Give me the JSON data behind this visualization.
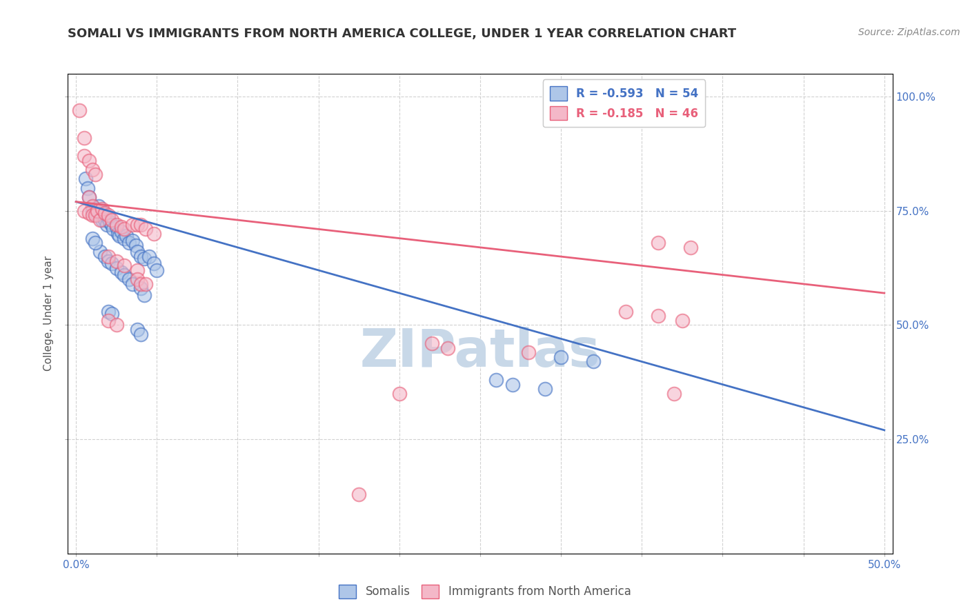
{
  "title": "SOMALI VS IMMIGRANTS FROM NORTH AMERICA COLLEGE, UNDER 1 YEAR CORRELATION CHART",
  "source": "Source: ZipAtlas.com",
  "ylabel": "College, Under 1 year",
  "legend_blue_r": "R = -0.593",
  "legend_blue_n": "N = 54",
  "legend_pink_r": "R = -0.185",
  "legend_pink_n": "N = 46",
  "legend_label_blue": "Somalis",
  "legend_label_pink": "Immigrants from North America",
  "blue_color": "#aec6e8",
  "pink_color": "#f4b8c8",
  "blue_line_color": "#4472c4",
  "pink_line_color": "#e8607a",
  "blue_scatter": [
    [
      0.01,
      0.76
    ],
    [
      0.01,
      0.75
    ],
    [
      0.012,
      0.755
    ],
    [
      0.013,
      0.74
    ],
    [
      0.014,
      0.76
    ],
    [
      0.015,
      0.745
    ],
    [
      0.016,
      0.73
    ],
    [
      0.017,
      0.745
    ],
    [
      0.018,
      0.73
    ],
    [
      0.019,
      0.72
    ],
    [
      0.02,
      0.735
    ],
    [
      0.021,
      0.725
    ],
    [
      0.022,
      0.72
    ],
    [
      0.023,
      0.71
    ],
    [
      0.025,
      0.715
    ],
    [
      0.026,
      0.7
    ],
    [
      0.027,
      0.695
    ],
    [
      0.028,
      0.705
    ],
    [
      0.03,
      0.69
    ],
    [
      0.031,
      0.695
    ],
    [
      0.033,
      0.68
    ],
    [
      0.035,
      0.685
    ],
    [
      0.037,
      0.675
    ],
    [
      0.038,
      0.66
    ],
    [
      0.04,
      0.65
    ],
    [
      0.042,
      0.645
    ],
    [
      0.045,
      0.65
    ],
    [
      0.048,
      0.635
    ],
    [
      0.05,
      0.62
    ],
    [
      0.015,
      0.66
    ],
    [
      0.018,
      0.65
    ],
    [
      0.02,
      0.64
    ],
    [
      0.022,
      0.635
    ],
    [
      0.025,
      0.625
    ],
    [
      0.028,
      0.615
    ],
    [
      0.03,
      0.61
    ],
    [
      0.033,
      0.6
    ],
    [
      0.035,
      0.59
    ],
    [
      0.04,
      0.58
    ],
    [
      0.042,
      0.565
    ],
    [
      0.006,
      0.82
    ],
    [
      0.007,
      0.8
    ],
    [
      0.008,
      0.78
    ],
    [
      0.01,
      0.69
    ],
    [
      0.012,
      0.68
    ],
    [
      0.02,
      0.53
    ],
    [
      0.022,
      0.525
    ],
    [
      0.038,
      0.49
    ],
    [
      0.04,
      0.48
    ],
    [
      0.3,
      0.43
    ],
    [
      0.32,
      0.42
    ],
    [
      0.26,
      0.38
    ],
    [
      0.27,
      0.37
    ],
    [
      0.29,
      0.36
    ]
  ],
  "pink_scatter": [
    [
      0.002,
      0.97
    ],
    [
      0.005,
      0.91
    ],
    [
      0.005,
      0.87
    ],
    [
      0.008,
      0.86
    ],
    [
      0.01,
      0.84
    ],
    [
      0.012,
      0.83
    ],
    [
      0.008,
      0.78
    ],
    [
      0.01,
      0.76
    ],
    [
      0.005,
      0.75
    ],
    [
      0.008,
      0.745
    ],
    [
      0.01,
      0.74
    ],
    [
      0.012,
      0.74
    ],
    [
      0.013,
      0.75
    ],
    [
      0.015,
      0.73
    ],
    [
      0.016,
      0.755
    ],
    [
      0.018,
      0.745
    ],
    [
      0.02,
      0.74
    ],
    [
      0.022,
      0.73
    ],
    [
      0.025,
      0.72
    ],
    [
      0.028,
      0.715
    ],
    [
      0.03,
      0.71
    ],
    [
      0.035,
      0.72
    ],
    [
      0.038,
      0.72
    ],
    [
      0.04,
      0.72
    ],
    [
      0.043,
      0.71
    ],
    [
      0.048,
      0.7
    ],
    [
      0.02,
      0.65
    ],
    [
      0.025,
      0.64
    ],
    [
      0.03,
      0.63
    ],
    [
      0.038,
      0.62
    ],
    [
      0.038,
      0.6
    ],
    [
      0.04,
      0.59
    ],
    [
      0.043,
      0.59
    ],
    [
      0.02,
      0.51
    ],
    [
      0.025,
      0.5
    ],
    [
      0.36,
      0.68
    ],
    [
      0.38,
      0.67
    ],
    [
      0.34,
      0.53
    ],
    [
      0.36,
      0.52
    ],
    [
      0.375,
      0.51
    ],
    [
      0.2,
      0.35
    ],
    [
      0.175,
      0.13
    ],
    [
      0.22,
      0.46
    ],
    [
      0.23,
      0.45
    ],
    [
      0.28,
      0.44
    ],
    [
      0.37,
      0.35
    ]
  ],
  "blue_line_x": [
    0.0,
    0.5
  ],
  "blue_line_y": [
    0.77,
    0.27
  ],
  "pink_line_x": [
    0.0,
    0.5
  ],
  "pink_line_y": [
    0.77,
    0.57
  ],
  "xlim": [
    -0.005,
    0.505
  ],
  "ylim": [
    0.0,
    1.05
  ],
  "xticks": [
    0.0,
    0.05,
    0.1,
    0.15,
    0.2,
    0.25,
    0.3,
    0.35,
    0.4,
    0.45,
    0.5
  ],
  "yticks": [
    0.25,
    0.5,
    0.75,
    1.0
  ],
  "grid_color": "#cccccc",
  "background_color": "#ffffff",
  "watermark_color": "#c8d8e8",
  "title_fontsize": 13,
  "source_fontsize": 10,
  "tick_label_color": "#555555"
}
